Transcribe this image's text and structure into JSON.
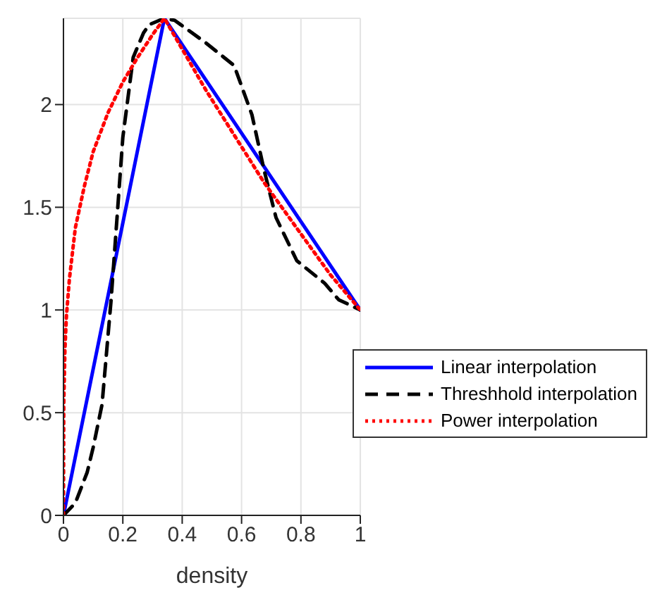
{
  "chart_data": {
    "type": "line",
    "xlabel": "density",
    "xlim": [
      0,
      1
    ],
    "xticks": [
      0,
      0.2,
      0.4,
      0.6,
      0.8,
      1
    ],
    "ylim": [
      0,
      2.42
    ],
    "yticks": [
      0,
      0.5,
      1,
      1.5,
      2
    ],
    "grid": true,
    "legend": "bottom right",
    "marker": "none",
    "series": [
      {
        "name": "Linear interpolation",
        "color": "#0000ff",
        "line_style": "solid",
        "x": [
          0,
          0.34,
          1
        ],
        "values": [
          0,
          2.42,
          1
        ]
      },
      {
        "name": "Threshhold interpolation",
        "color": "#000000",
        "line_style": "dashed",
        "x": [
          0,
          0.04,
          0.08,
          0.1,
          0.13,
          0.16,
          0.2,
          0.235,
          0.27,
          0.29,
          0.34,
          0.375,
          0.48,
          0.575,
          0.635,
          0.676,
          0.716,
          0.786,
          0.88,
          0.927,
          1
        ],
        "values": [
          0,
          0.06,
          0.21,
          0.33,
          0.54,
          1.04,
          1.84,
          2.23,
          2.35,
          2.39,
          2.42,
          2.41,
          2.3,
          2.19,
          1.95,
          1.68,
          1.45,
          1.24,
          1.13,
          1.05,
          1
        ]
      },
      {
        "name": "Power interpolation",
        "color": "#ff0000",
        "line_style": "dotted",
        "x": [
          0,
          0.001,
          0.005,
          0.01,
          0.02,
          0.04,
          0.07,
          0.1,
          0.15,
          0.2,
          0.25,
          0.3,
          0.34,
          0.48,
          0.676,
          0.8,
          0.9,
          1
        ],
        "values": [
          0,
          0.54,
          0.81,
          0.97,
          1.15,
          1.4,
          1.6,
          1.77,
          1.96,
          2.11,
          2.23,
          2.34,
          2.42,
          2.07,
          1.62,
          1.37,
          1.17,
          1
        ]
      }
    ]
  }
}
